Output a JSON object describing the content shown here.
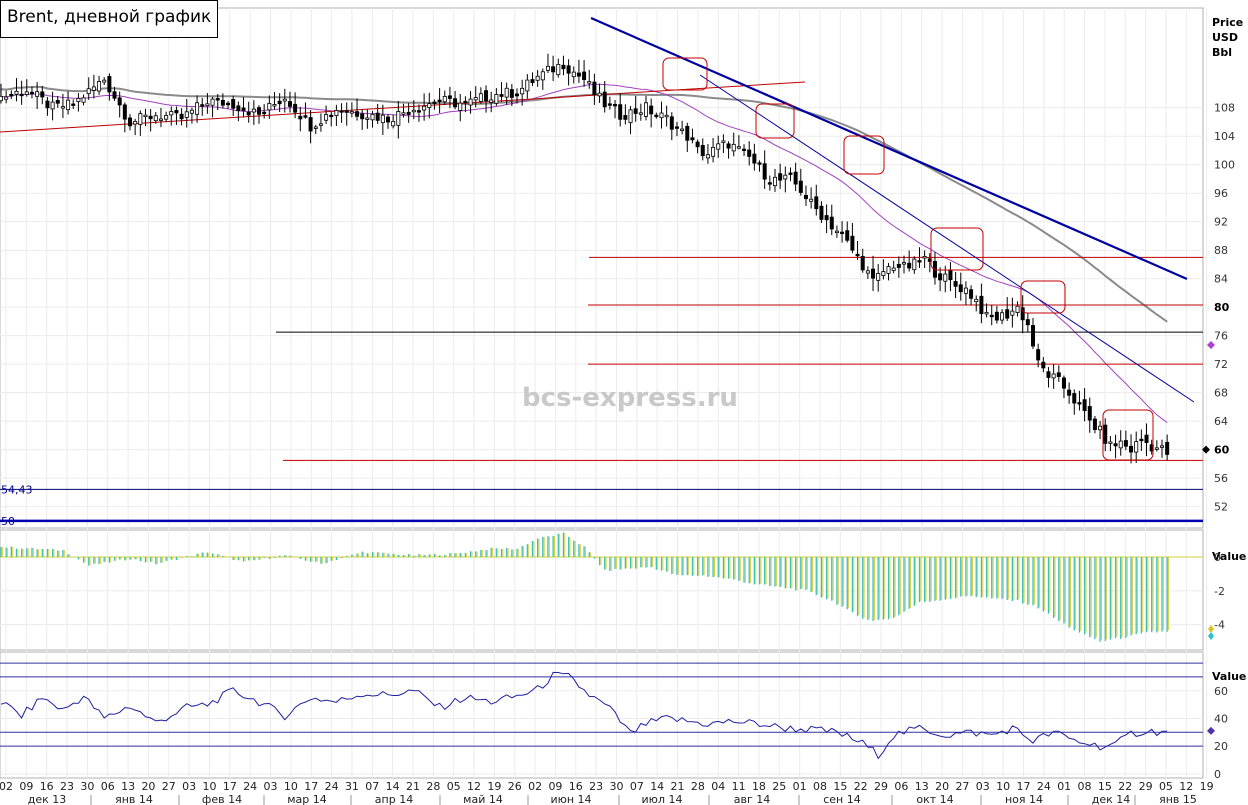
{
  "header": {
    "title": "Brent, дневной график"
  },
  "watermark": "bcs-express.ru",
  "colors": {
    "price_candles": "#000000",
    "ma_fast": "#a040c0",
    "ma_slow": "#8a8a8a",
    "resistance_lines": "#c00000",
    "trend_lines": "#0000a0",
    "hist_positive": "#40c0b0",
    "hist_negative": "#d8d040",
    "rsi_line": "#2020a0"
  },
  "chart_data": [
    {
      "type": "candlestick",
      "panel": "price",
      "title": "Brent, дневной график",
      "ylabel": "Price USD Bbl",
      "ylim": [
        49,
        122
      ],
      "y_ticks": [
        52,
        56,
        60,
        64,
        68,
        72,
        76,
        80,
        84,
        88,
        92,
        96,
        100,
        104,
        108
      ],
      "grid": true,
      "x_ticks": [
        "02",
        "09",
        "16",
        "23",
        "30",
        "06",
        "13",
        "20",
        "27",
        "03",
        "10",
        "17",
        "24",
        "03",
        "10",
        "17",
        "24",
        "31",
        "07",
        "14",
        "21",
        "28",
        "05",
        "12",
        "19",
        "26",
        "02",
        "09",
        "16",
        "23",
        "30",
        "07",
        "14",
        "21",
        "28",
        "04",
        "11",
        "18",
        "25",
        "01",
        "08",
        "15",
        "22",
        "29",
        "06",
        "13",
        "20",
        "27",
        "03",
        "10",
        "17",
        "24",
        "01",
        "08",
        "15",
        "22",
        "29",
        "05",
        "12",
        "19"
      ],
      "months": [
        "дек 13",
        "янв 14",
        "фев 14",
        "мар 14",
        "апр 14",
        "май 14",
        "июн 14",
        "июл 14",
        "авг 14",
        "сен 14",
        "окт 14",
        "ноя 14",
        "дек 14",
        "янв 15"
      ],
      "close_path": [
        [
          0,
          109.5
        ],
        [
          5,
          110.5
        ],
        [
          10,
          108
        ],
        [
          14,
          108.5
        ],
        [
          20,
          112
        ],
        [
          25,
          106
        ],
        [
          30,
          107
        ],
        [
          35,
          106.5
        ],
        [
          40,
          109
        ],
        [
          45,
          108.5
        ],
        [
          50,
          107
        ],
        [
          55,
          109.5
        ],
        [
          60,
          105.5
        ],
        [
          65,
          107.8
        ],
        [
          70,
          107.2
        ],
        [
          75,
          106.5
        ],
        [
          80,
          108
        ],
        [
          85,
          109
        ],
        [
          90,
          108.5
        ],
        [
          95,
          109.8
        ],
        [
          100,
          110.2
        ],
        [
          104,
          112.3
        ],
        [
          107,
          113.5
        ],
        [
          109,
          114.2
        ],
        [
          111,
          113
        ],
        [
          113,
          112
        ],
        [
          115,
          110
        ],
        [
          117,
          108.5
        ],
        [
          120,
          107
        ],
        [
          123,
          107.5
        ],
        [
          125,
          108
        ],
        [
          127,
          107
        ],
        [
          129,
          106.5
        ],
        [
          131,
          105
        ],
        [
          133,
          104
        ],
        [
          135,
          102
        ],
        [
          137,
          101.5
        ],
        [
          139,
          102.5
        ],
        [
          141,
          103
        ],
        [
          143,
          102
        ],
        [
          145,
          101
        ],
        [
          147,
          99.5
        ],
        [
          149,
          98
        ],
        [
          151,
          97.8
        ],
        [
          153,
          98
        ],
        [
          155,
          96.5
        ],
        [
          157,
          94.5
        ],
        [
          159,
          93
        ],
        [
          161,
          91.5
        ],
        [
          163,
          90
        ],
        [
          165,
          88
        ],
        [
          167,
          86
        ],
        [
          169,
          83.5
        ],
        [
          171,
          85
        ],
        [
          173,
          86
        ],
        [
          175,
          85.5
        ],
        [
          177,
          86
        ],
        [
          179,
          86.8
        ],
        [
          181,
          85
        ],
        [
          183,
          84
        ],
        [
          185,
          83
        ],
        [
          187,
          82.5
        ],
        [
          189,
          81
        ],
        [
          191,
          78.5
        ],
        [
          193,
          78.5
        ],
        [
          195,
          79
        ],
        [
          197,
          80
        ],
        [
          199,
          77.5
        ],
        [
          201,
          72
        ],
        [
          203,
          70.5
        ],
        [
          205,
          69.5
        ],
        [
          207,
          68
        ],
        [
          209,
          66
        ],
        [
          211,
          64
        ],
        [
          213,
          62.5
        ],
        [
          215,
          60.5
        ],
        [
          217,
          61
        ],
        [
          219,
          60
        ],
        [
          221,
          61.5
        ],
        [
          223,
          60.5
        ],
        [
          225,
          60
        ],
        [
          226,
          59.5
        ]
      ],
      "annotations": {
        "horizontal_levels": [
          87,
          80.3,
          76.5,
          72,
          58.5
        ],
        "level_labels": [
          "54,43",
          "50"
        ],
        "level_values": [
          54.43,
          50
        ],
        "right_markers": [
          "80",
          "60"
        ],
        "current_price": 60
      }
    },
    {
      "type": "bar",
      "panel": "oscillator",
      "ylabel": "Value",
      "ylim": [
        -5.5,
        1.6
      ],
      "y_ticks": [
        0,
        -2,
        -4
      ],
      "grid": true,
      "value_path": [
        [
          0,
          0.6
        ],
        [
          6,
          0.5
        ],
        [
          12,
          0.4
        ],
        [
          17,
          -0.5
        ],
        [
          25,
          -0.1
        ],
        [
          30,
          -0.4
        ],
        [
          40,
          0.3
        ],
        [
          47,
          -0.3
        ],
        [
          55,
          0.1
        ],
        [
          62,
          -0.4
        ],
        [
          70,
          0.3
        ],
        [
          80,
          0.1
        ],
        [
          88,
          0.2
        ],
        [
          95,
          0.5
        ],
        [
          100,
          0.5
        ],
        [
          104,
          1.1
        ],
        [
          109,
          1.4
        ],
        [
          113,
          0.6
        ],
        [
          117,
          -0.8
        ],
        [
          121,
          -0.7
        ],
        [
          126,
          -0.6
        ],
        [
          131,
          -1.1
        ],
        [
          136,
          -1.1
        ],
        [
          141,
          -1.3
        ],
        [
          146,
          -1.6
        ],
        [
          151,
          -1.8
        ],
        [
          156,
          -2.0
        ],
        [
          161,
          -2.6
        ],
        [
          166,
          -3.5
        ],
        [
          169,
          -3.8
        ],
        [
          173,
          -3.6
        ],
        [
          178,
          -2.7
        ],
        [
          183,
          -2.5
        ],
        [
          188,
          -2.3
        ],
        [
          193,
          -2.5
        ],
        [
          197,
          -2.6
        ],
        [
          201,
          -3.0
        ],
        [
          205,
          -3.8
        ],
        [
          209,
          -4.5
        ],
        [
          213,
          -5.0
        ],
        [
          217,
          -4.8
        ],
        [
          222,
          -4.5
        ],
        [
          226,
          -4.4
        ]
      ]
    },
    {
      "type": "line",
      "panel": "rsi",
      "ylabel": "Value",
      "ylim": [
        -3,
        88
      ],
      "y_ticks": [
        60,
        40,
        20,
        0
      ],
      "grid": true,
      "levels": [
        80,
        70,
        30,
        20
      ],
      "value_path": [
        [
          0,
          52
        ],
        [
          4,
          42
        ],
        [
          8,
          55
        ],
        [
          12,
          46
        ],
        [
          16,
          56
        ],
        [
          20,
          40
        ],
        [
          25,
          49
        ],
        [
          30,
          37
        ],
        [
          36,
          48
        ],
        [
          40,
          50
        ],
        [
          45,
          60
        ],
        [
          50,
          52
        ],
        [
          55,
          42
        ],
        [
          60,
          55
        ],
        [
          65,
          52
        ],
        [
          70,
          58
        ],
        [
          75,
          57
        ],
        [
          80,
          60
        ],
        [
          85,
          48
        ],
        [
          90,
          55
        ],
        [
          95,
          52
        ],
        [
          100,
          56
        ],
        [
          104,
          61
        ],
        [
          107,
          71
        ],
        [
          110,
          70
        ],
        [
          114,
          57
        ],
        [
          118,
          47
        ],
        [
          122,
          29
        ],
        [
          125,
          36
        ],
        [
          129,
          40
        ],
        [
          133,
          38
        ],
        [
          137,
          36
        ],
        [
          142,
          38
        ],
        [
          147,
          36
        ],
        [
          152,
          33
        ],
        [
          157,
          32
        ],
        [
          162,
          30
        ],
        [
          167,
          22
        ],
        [
          170,
          14
        ],
        [
          173,
          28
        ],
        [
          178,
          33
        ],
        [
          183,
          28
        ],
        [
          188,
          30
        ],
        [
          192,
          28
        ],
        [
          196,
          33
        ],
        [
          200,
          24
        ],
        [
          204,
          30
        ],
        [
          208,
          24
        ],
        [
          213,
          20
        ],
        [
          216,
          21
        ],
        [
          219,
          29
        ],
        [
          222,
          31
        ],
        [
          226,
          30
        ]
      ],
      "current_value": 31
    }
  ]
}
